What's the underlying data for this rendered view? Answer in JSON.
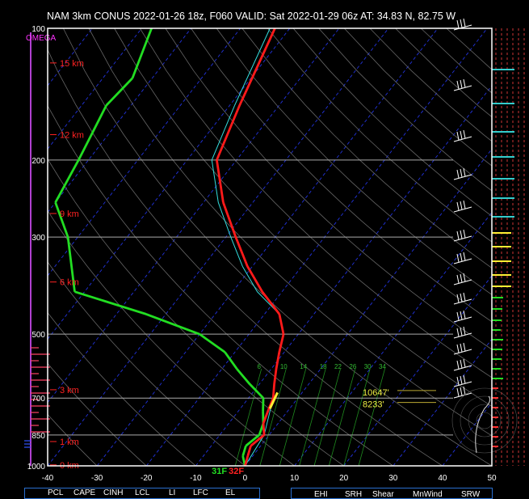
{
  "header": {
    "title": "NAM 3km CONUS 2022-01-26 18z, F060  VALID: Sat 2022-01-29 06z  AT: 34.83 N, 82.75 W"
  },
  "chart_data": {
    "type": "line",
    "plot": "skew-T log-P sounding",
    "xlim": [
      -40,
      50
    ],
    "ylim": [
      1000,
      100
    ],
    "x_ticks": [
      "-40",
      "-30",
      "-20",
      "-10",
      "0",
      "10",
      "20",
      "30",
      "40",
      "50"
    ],
    "pressure_labels": [
      "100",
      "200",
      "300",
      "500",
      "700",
      "850",
      "1000"
    ],
    "height_labels": [
      "15 km",
      "12 km",
      "9 km",
      "6 km",
      "3 km",
      "1 km",
      "0 km"
    ],
    "omega_label": "OMEGA",
    "mixing_ratio_labels": [
      "6",
      "10",
      "14",
      "18",
      "22",
      "26",
      "30",
      "34"
    ],
    "surface_labels": {
      "dewpoint": "31F",
      "temperature": "32F"
    },
    "level_labels": [
      "10647'",
      "8233'"
    ],
    "colors": {
      "temperature": "#ff1a1a",
      "dewpoint": "#22dd22",
      "virtual_temperature": "#33dddd",
      "parcel": "#ffee33",
      "isobar": "#bbbbbb",
      "isotherm": "#2233dd"
    },
    "series": [
      {
        "key": "temperature",
        "points": [
          [
            1000,
            0
          ],
          [
            950,
            -1
          ],
          [
            900,
            -2
          ],
          [
            850,
            -1
          ],
          [
            800,
            -3
          ],
          [
            750,
            -4
          ],
          [
            700,
            -5
          ],
          [
            650,
            -7
          ],
          [
            600,
            -9
          ],
          [
            550,
            -11
          ],
          [
            500,
            -13
          ],
          [
            450,
            -17
          ],
          [
            400,
            -24
          ],
          [
            350,
            -31
          ],
          [
            300,
            -38
          ],
          [
            250,
            -46
          ],
          [
            200,
            -54
          ],
          [
            150,
            -58
          ],
          [
            100,
            -63
          ]
        ]
      },
      {
        "key": "dewpoint",
        "points": [
          [
            1000,
            0
          ],
          [
            950,
            -2
          ],
          [
            900,
            -3
          ],
          [
            850,
            -2
          ],
          [
            800,
            -3
          ],
          [
            750,
            -5
          ],
          [
            700,
            -7
          ],
          [
            650,
            -12
          ],
          [
            600,
            -17
          ],
          [
            550,
            -22
          ],
          [
            500,
            -30
          ],
          [
            450,
            -44
          ],
          [
            400,
            -62
          ],
          [
            300,
            -72
          ],
          [
            250,
            -80
          ],
          [
            200,
            -82
          ],
          [
            150,
            -85
          ],
          [
            130,
            -84
          ],
          [
            100,
            -88
          ]
        ]
      },
      {
        "key": "virtual_temperature",
        "points": [
          [
            1000,
            0
          ],
          [
            850,
            -1
          ],
          [
            700,
            -5
          ],
          [
            600,
            -9
          ],
          [
            500,
            -13
          ],
          [
            450,
            -17
          ],
          [
            400,
            -25
          ],
          [
            350,
            -32
          ],
          [
            300,
            -39
          ],
          [
            250,
            -47
          ],
          [
            200,
            -55
          ],
          [
            150,
            -59
          ],
          [
            100,
            -64
          ]
        ]
      }
    ],
    "parameter_headers_left": [
      "PCL",
      "CAPE",
      "CINH",
      "LCL",
      "LI",
      "LFC",
      "EL"
    ],
    "parameter_headers_right": [
      "EHI",
      "SRH",
      "Shear",
      "MnWind",
      "SRW"
    ]
  }
}
